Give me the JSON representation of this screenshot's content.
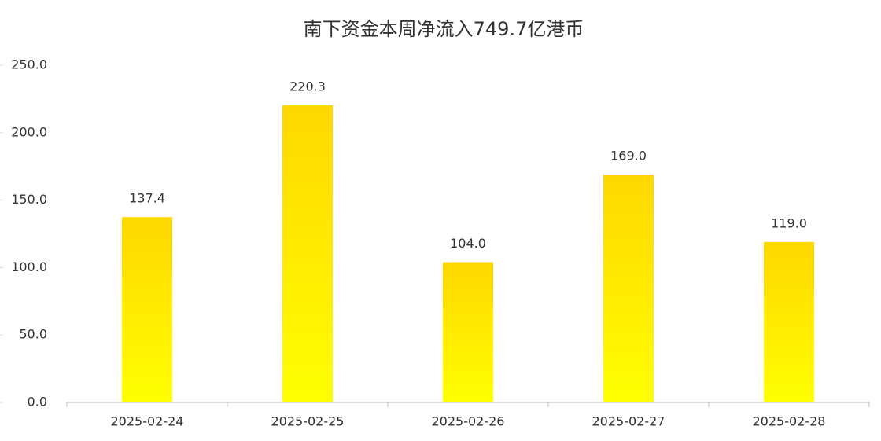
{
  "chart_data": {
    "type": "bar",
    "title": "南下资金本周净流入749.7亿港币",
    "categories": [
      "2025-02-24",
      "2025-02-25",
      "2025-02-26",
      "2025-02-27",
      "2025-02-28"
    ],
    "values": [
      137.4,
      220.3,
      104.0,
      169.0,
      119.0
    ],
    "value_labels": [
      "137.4",
      "220.3",
      "104.0",
      "169.0",
      "119.0"
    ],
    "gradient": [
      "#ffd700",
      "#ffff00"
    ],
    "ylim": [
      0,
      250
    ],
    "yticks": [
      {
        "value": 0,
        "label": "0.0"
      },
      {
        "value": 50,
        "label": "50.0"
      },
      {
        "value": 100,
        "label": "100.0"
      },
      {
        "value": 150,
        "label": "150.0"
      },
      {
        "value": 200,
        "label": "200.0"
      },
      {
        "value": 250,
        "label": "250.0"
      }
    ],
    "grid": false
  }
}
